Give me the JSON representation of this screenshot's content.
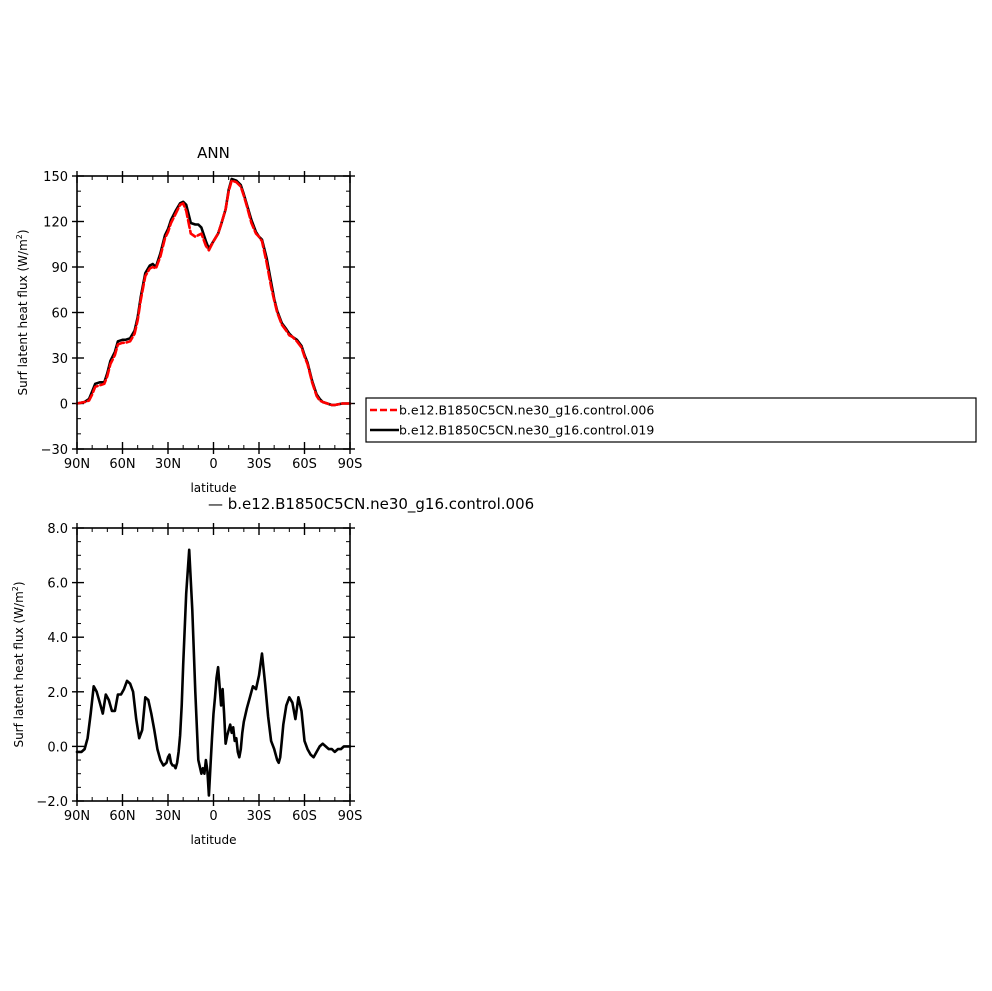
{
  "colors": {
    "control_006": "#ff0000",
    "control_019": "#000000",
    "difference": "#000000"
  },
  "chart_data": [
    {
      "type": "line",
      "title": "ANN",
      "xlabel": "latitude",
      "ylabel": "Surf latent heat flux (W/m²)",
      "ylabel_main": "Surf latent heat flux (W/m",
      "ylabel_sup": "2",
      "ylabel_close": ")",
      "xlim": [
        90,
        -90
      ],
      "ylim": [
        -30,
        150
      ],
      "xticks": [
        90,
        60,
        30,
        0,
        -30,
        -60,
        -90
      ],
      "xtick_labels": [
        "90N",
        "60N",
        "30N",
        "0",
        "30S",
        "60S",
        "90S"
      ],
      "yticks": [
        -30,
        0,
        30,
        60,
        90,
        120,
        150
      ],
      "ytick_labels": [
        "−30",
        "0",
        "30",
        "60",
        "90",
        "120",
        "150"
      ],
      "legend": {
        "placement": "right-outside",
        "entries": [
          "b.e12.B1850C5CN.ne30_g16.control.006",
          "b.e12.B1850C5CN.ne30_g16.control.019"
        ]
      },
      "series": [
        {
          "name": "b.e12.B1850C5CN.ne30_g16.control.006",
          "color": "#ff0000",
          "style": "dashed",
          "x": [
            90,
            85,
            82,
            80,
            78,
            75,
            72,
            70,
            68,
            65,
            63,
            60,
            58,
            55,
            52,
            50,
            48,
            45,
            42,
            40,
            38,
            35,
            32,
            30,
            28,
            25,
            22,
            20,
            18,
            15,
            12,
            10,
            8,
            5,
            3,
            0,
            -3,
            -5,
            -8,
            -10,
            -12,
            -15,
            -18,
            -20,
            -22,
            -25,
            -28,
            -30,
            -32,
            -35,
            -38,
            -40,
            -42,
            -45,
            -48,
            -50,
            -52,
            -55,
            -58,
            -60,
            -62,
            -65,
            -68,
            -70,
            -72,
            -75,
            -78,
            -80,
            -85,
            -90
          ],
          "y": [
            0,
            1,
            2,
            6,
            11,
            12,
            13,
            18,
            26,
            32,
            39,
            40,
            40,
            41,
            46,
            55,
            68,
            84,
            89,
            90,
            89,
            97,
            109,
            113,
            119,
            125,
            131,
            132,
            127,
            112,
            110,
            111,
            112,
            104,
            101,
            107,
            112,
            118,
            128,
            140,
            147,
            146,
            143,
            137,
            130,
            119,
            112,
            110,
            107,
            93,
            77,
            68,
            60,
            52,
            48,
            45,
            44,
            41,
            37,
            31,
            26,
            14,
            5,
            2,
            1,
            0,
            -1,
            -1,
            0,
            0
          ]
        },
        {
          "name": "b.e12.B1850C5CN.ne30_g16.control.019",
          "color": "#000000",
          "style": "solid",
          "x": [
            90,
            85,
            82,
            80,
            78,
            75,
            72,
            70,
            68,
            65,
            63,
            60,
            58,
            55,
            52,
            50,
            48,
            45,
            42,
            40,
            38,
            35,
            32,
            30,
            28,
            25,
            22,
            20,
            18,
            15,
            12,
            10,
            8,
            5,
            3,
            0,
            -3,
            -5,
            -8,
            -10,
            -12,
            -15,
            -18,
            -20,
            -22,
            -25,
            -28,
            -30,
            -32,
            -35,
            -38,
            -40,
            -42,
            -45,
            -48,
            -50,
            -52,
            -55,
            -58,
            -60,
            -62,
            -65,
            -68,
            -70,
            -72,
            -75,
            -78,
            -80,
            -85,
            -90
          ],
          "y": [
            0,
            1,
            3,
            8,
            13,
            14,
            14,
            20,
            28,
            34,
            41,
            42,
            42,
            43,
            48,
            57,
            70,
            86,
            91,
            92,
            90,
            99,
            111,
            115,
            121,
            127,
            132,
            133,
            131,
            119,
            118,
            118,
            116,
            107,
            102,
            107,
            112,
            118,
            128,
            141,
            148,
            147,
            144,
            138,
            131,
            121,
            113,
            110,
            108,
            96,
            80,
            69,
            61,
            53,
            49,
            46,
            44,
            42,
            38,
            32,
            27,
            15,
            6,
            3,
            1,
            0,
            -1,
            -1,
            0,
            0
          ]
        }
      ]
    },
    {
      "type": "line",
      "title": "— b.e12.B1850C5CN.ne30_g16.control.006",
      "xlabel": "latitude",
      "ylabel": "Surf latent heat flux (W/m²)",
      "ylabel_main": "Surf latent heat flux (W/m",
      "ylabel_sup": "2",
      "ylabel_close": ")",
      "xlim": [
        90,
        -90
      ],
      "ylim": [
        -2,
        8
      ],
      "xticks": [
        90,
        60,
        30,
        0,
        -30,
        -60,
        -90
      ],
      "xtick_labels": [
        "90N",
        "60N",
        "30N",
        "0",
        "30S",
        "60S",
        "90S"
      ],
      "yticks": [
        -2,
        0,
        2,
        4,
        6,
        8
      ],
      "ytick_labels": [
        "−2.0",
        "0.0",
        "2.0",
        "4.0",
        "6.0",
        "8.0"
      ],
      "series": [
        {
          "name": "",
          "color": "#000000",
          "style": "solid",
          "x": [
            90,
            87,
            85,
            83,
            81,
            79,
            77,
            75,
            73,
            71,
            69,
            67,
            65,
            63,
            61,
            59,
            57,
            55,
            53,
            51,
            49,
            47,
            45,
            43,
            41,
            39,
            37,
            35,
            33,
            31,
            30,
            29,
            28,
            27,
            26,
            25,
            24,
            23,
            22,
            21,
            20,
            18,
            16,
            14,
            12,
            10,
            8,
            7,
            6,
            5,
            4,
            3,
            2,
            1,
            0,
            -1,
            -2,
            -3,
            -4,
            -5,
            -6,
            -7,
            -8,
            -9,
            -10,
            -11,
            -12,
            -13,
            -14,
            -15,
            -16,
            -17,
            -18,
            -19,
            -20,
            -22,
            -24,
            -26,
            -28,
            -30,
            -32,
            -34,
            -36,
            -38,
            -40,
            -41,
            -42,
            -43,
            -44,
            -45,
            -46,
            -48,
            -50,
            -52,
            -54,
            -56,
            -58,
            -60,
            -62,
            -64,
            -66,
            -68,
            -70,
            -72,
            -74,
            -76,
            -78,
            -80,
            -82,
            -84,
            -86,
            -88,
            -90
          ],
          "y": [
            -0.2,
            -0.2,
            -0.1,
            0.3,
            1.2,
            2.2,
            2.0,
            1.6,
            1.2,
            1.9,
            1.7,
            1.3,
            1.3,
            1.9,
            1.9,
            2.1,
            2.4,
            2.3,
            2.0,
            1.0,
            0.3,
            0.6,
            1.8,
            1.7,
            1.2,
            0.6,
            -0.1,
            -0.5,
            -0.7,
            -0.6,
            -0.4,
            -0.3,
            -0.6,
            -0.7,
            -0.7,
            -0.8,
            -0.6,
            -0.2,
            0.4,
            1.5,
            3.0,
            5.6,
            7.2,
            5.0,
            2.0,
            -0.5,
            -1.0,
            -0.8,
            -1.0,
            -0.5,
            -0.9,
            -1.8,
            -0.7,
            0.3,
            1.2,
            1.8,
            2.5,
            2.9,
            2.2,
            1.5,
            2.1,
            1.2,
            0.1,
            0.4,
            0.6,
            0.8,
            0.5,
            0.7,
            0.2,
            0.3,
            -0.2,
            -0.4,
            -0.1,
            0.5,
            0.9,
            1.4,
            1.8,
            2.2,
            2.1,
            2.6,
            3.4,
            2.3,
            1.1,
            0.2,
            -0.1,
            -0.3,
            -0.5,
            -0.6,
            -0.4,
            0.2,
            0.8,
            1.5,
            1.8,
            1.6,
            1.0,
            1.8,
            1.3,
            0.2,
            -0.1,
            -0.3,
            -0.4,
            -0.2,
            0.0,
            0.1,
            0.0,
            -0.1,
            -0.1,
            -0.2,
            -0.1,
            -0.1,
            0.0,
            0.0,
            0.0
          ]
        }
      ]
    }
  ]
}
